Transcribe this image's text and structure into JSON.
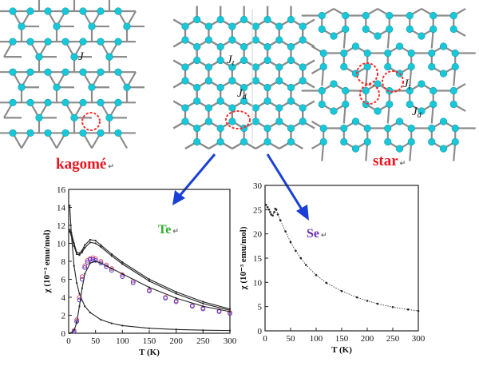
{
  "colors": {
    "atom": "#19c8d8",
    "bond": "#8c8c8c",
    "highlight": "#ff2a2a",
    "arrow": "#1a3fd6",
    "kagome_text": "#e8141e",
    "star_text": "#e8141e",
    "te_text": "#2fae2f",
    "se_text": "#6a2fb0",
    "te_open_red": "#e84a6a",
    "te_open_blue": "#4a3ad8"
  },
  "lattices": {
    "kagome": {
      "label": "kagomé",
      "mark": "↵",
      "coupling": "J"
    },
    "middle": {
      "coupling_t": "J",
      "coupling_t_sub": "t",
      "coupling_d": "J",
      "coupling_d_sub": "d"
    },
    "star": {
      "label": "star",
      "mark": "↵",
      "coupling_t": "J",
      "coupling_t_sub": "t",
      "coupling_d": "J",
      "coupling_d_sub": "d"
    }
  },
  "chart_data": [
    {
      "type": "line",
      "label": "Te",
      "mark": "↵",
      "xlabel": "T (K)",
      "ylabel": "χ (10⁻³ emu/mol)",
      "xlim": [
        0,
        300
      ],
      "ylim": [
        0,
        16
      ],
      "xticks": [
        "0",
        "50",
        "100",
        "150",
        "200",
        "250",
        "300"
      ],
      "yticks": [
        "0",
        "2",
        "4",
        "6",
        "8",
        "10",
        "12",
        "14",
        "16"
      ],
      "series": [
        {
          "marker": "line",
          "x": [
            2,
            5,
            10,
            15,
            20,
            30,
            40,
            60,
            80,
            100,
            150,
            200,
            250,
            300
          ],
          "y": [
            14.2,
            11.0,
            7.5,
            5.6,
            4.4,
            3.0,
            2.3,
            1.5,
            1.1,
            0.85,
            0.55,
            0.42,
            0.34,
            0.3
          ]
        },
        {
          "marker": "line",
          "x": [
            2,
            5,
            10,
            15,
            20,
            25,
            30,
            40,
            50,
            60,
            80,
            100,
            150,
            200,
            250,
            300
          ],
          "y": [
            11.5,
            11.2,
            10.0,
            9.0,
            8.9,
            9.2,
            9.8,
            10.4,
            10.3,
            9.8,
            8.8,
            7.9,
            6.0,
            4.6,
            3.5,
            2.7
          ]
        },
        {
          "marker": "line",
          "x": [
            2,
            5,
            10,
            15,
            20,
            25,
            30,
            40,
            50,
            60,
            80,
            100,
            150,
            200,
            250,
            300
          ],
          "y": [
            11.3,
            10.9,
            9.7,
            8.8,
            8.7,
            9.0,
            9.5,
            10.1,
            10.0,
            9.6,
            8.6,
            7.7,
            5.8,
            4.4,
            3.3,
            2.55
          ]
        },
        {
          "marker": "open-red",
          "x": [
            10,
            15,
            20,
            25,
            30,
            35,
            40,
            45,
            50,
            60,
            70,
            80,
            100,
            120,
            150,
            180,
            200,
            230,
            250,
            280,
            300
          ],
          "y": [
            0.3,
            1.5,
            4.0,
            6.3,
            7.5,
            8.1,
            8.3,
            8.4,
            8.3,
            8.0,
            7.6,
            7.2,
            6.5,
            5.8,
            4.8,
            4.0,
            3.6,
            3.1,
            2.8,
            2.5,
            2.3
          ]
        },
        {
          "marker": "open-blue",
          "x": [
            10,
            15,
            20,
            25,
            30,
            35,
            40,
            45,
            50,
            60,
            70,
            80,
            100,
            120,
            150,
            180,
            200,
            230,
            250,
            280,
            300
          ],
          "y": [
            0.2,
            1.3,
            3.7,
            6.0,
            7.3,
            7.9,
            8.2,
            8.2,
            8.1,
            7.8,
            7.4,
            7.0,
            6.3,
            5.6,
            4.7,
            3.9,
            3.5,
            3.0,
            2.7,
            2.4,
            2.2
          ]
        },
        {
          "marker": "line",
          "x": [
            2,
            5,
            10,
            15,
            20,
            25,
            30,
            40,
            50,
            60,
            80,
            100,
            150,
            200,
            250,
            300
          ],
          "y": [
            0.0,
            0.05,
            0.3,
            1.2,
            3.0,
            5.0,
            6.6,
            7.8,
            8.0,
            7.8,
            7.2,
            6.6,
            5.1,
            3.9,
            3.0,
            2.4
          ]
        }
      ]
    },
    {
      "type": "line",
      "label": "Se",
      "mark": "↵",
      "xlabel": "T (K)",
      "ylabel": "χ (10⁻³ emu/mol)",
      "xlim": [
        0,
        300
      ],
      "ylim": [
        0,
        30
      ],
      "xticks": [
        "0",
        "50",
        "100",
        "150",
        "200",
        "250",
        "300"
      ],
      "yticks": [
        "0",
        "5",
        "10",
        "15",
        "20",
        "25",
        "30"
      ],
      "series": [
        {
          "marker": "dots",
          "x": [
            2,
            5,
            8,
            10,
            12,
            15,
            18,
            20,
            22,
            25,
            30,
            40,
            50,
            60,
            70,
            80,
            100,
            120,
            150,
            180,
            200,
            220,
            250,
            280,
            300
          ],
          "y": [
            26.0,
            25.5,
            25.0,
            24.5,
            24.0,
            23.8,
            24.5,
            25.2,
            25.0,
            24.0,
            22.8,
            20.5,
            18.3,
            16.5,
            15.0,
            13.6,
            11.5,
            9.9,
            8.2,
            6.9,
            6.2,
            5.6,
            4.9,
            4.4,
            4.1
          ]
        }
      ]
    }
  ]
}
